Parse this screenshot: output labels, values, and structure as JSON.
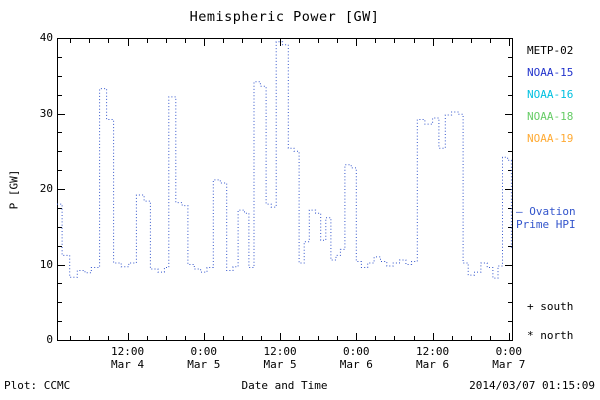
{
  "chart_data": {
    "type": "line",
    "title": "Hemispheric Power [GW]",
    "ylabel": "P [GW]",
    "xlabel": "Date and Time",
    "ylim": [
      0,
      40
    ],
    "xlim": [
      0.9,
      72.5
    ],
    "x_unit": "hours from 2014-03-04 00:00",
    "grid": false,
    "y_ticks": [
      0,
      10,
      20,
      30,
      40
    ],
    "y_minor_step": 2.5,
    "x_minor_step": 3,
    "x_ticks": [
      {
        "pos": 12,
        "line1": "12:00",
        "line2": "Mar 4"
      },
      {
        "pos": 24,
        "line1": "0:00",
        "line2": "Mar 5"
      },
      {
        "pos": 36,
        "line1": "12:00",
        "line2": "Mar 5"
      },
      {
        "pos": 48,
        "line1": "0:00",
        "line2": "Mar 6"
      },
      {
        "pos": 60,
        "line1": "12:00",
        "line2": "Mar 6"
      },
      {
        "pos": 72,
        "line1": "0:00",
        "line2": "Mar 7"
      }
    ],
    "series": [
      {
        "name": "Ovation Prime HPI",
        "color": "#3355cc",
        "style": "dotted-step",
        "points": [
          [
            0.9,
            18.0
          ],
          [
            1.7,
            11.2
          ],
          [
            2.9,
            8.3
          ],
          [
            4.1,
            9.2
          ],
          [
            5.3,
            8.9
          ],
          [
            6.3,
            9.6
          ],
          [
            7.6,
            33.3
          ],
          [
            8.7,
            29.2
          ],
          [
            9.8,
            10.2
          ],
          [
            11.0,
            9.7
          ],
          [
            12.2,
            10.2
          ],
          [
            13.4,
            19.2
          ],
          [
            14.6,
            18.4
          ],
          [
            15.6,
            9.4
          ],
          [
            16.8,
            9.0
          ],
          [
            17.8,
            9.6
          ],
          [
            18.5,
            32.2
          ],
          [
            19.6,
            18.2
          ],
          [
            20.6,
            17.8
          ],
          [
            21.5,
            10.0
          ],
          [
            22.5,
            9.4
          ],
          [
            23.5,
            9.0
          ],
          [
            24.5,
            9.6
          ],
          [
            25.5,
            21.2
          ],
          [
            26.6,
            20.8
          ],
          [
            27.6,
            9.2
          ],
          [
            28.6,
            9.7
          ],
          [
            29.4,
            17.2
          ],
          [
            30.4,
            16.8
          ],
          [
            31.1,
            9.6
          ],
          [
            31.9,
            34.2
          ],
          [
            32.9,
            33.6
          ],
          [
            33.8,
            18.0
          ],
          [
            34.6,
            17.6
          ],
          [
            35.4,
            39.5
          ],
          [
            36.4,
            39.1
          ],
          [
            37.3,
            25.4
          ],
          [
            38.2,
            25.0
          ],
          [
            39.0,
            10.2
          ],
          [
            39.8,
            13.0
          ],
          [
            40.6,
            17.2
          ],
          [
            41.6,
            16.8
          ],
          [
            42.4,
            13.2
          ],
          [
            43.2,
            16.2
          ],
          [
            44.0,
            10.6
          ],
          [
            44.8,
            11.2
          ],
          [
            45.5,
            12.0
          ],
          [
            46.2,
            23.2
          ],
          [
            47.2,
            22.8
          ],
          [
            48.0,
            10.4
          ],
          [
            48.8,
            9.6
          ],
          [
            49.8,
            10.2
          ],
          [
            50.8,
            11.0
          ],
          [
            51.8,
            10.4
          ],
          [
            52.8,
            9.8
          ],
          [
            53.8,
            10.2
          ],
          [
            54.8,
            10.6
          ],
          [
            55.8,
            10.0
          ],
          [
            56.7,
            10.4
          ],
          [
            57.6,
            29.2
          ],
          [
            58.8,
            28.6
          ],
          [
            60.0,
            29.4
          ],
          [
            61.0,
            25.4
          ],
          [
            62.0,
            29.8
          ],
          [
            63.0,
            30.2
          ],
          [
            64.0,
            29.9
          ],
          [
            64.8,
            10.2
          ],
          [
            65.6,
            8.6
          ],
          [
            66.6,
            9.0
          ],
          [
            67.6,
            10.2
          ],
          [
            68.6,
            9.6
          ],
          [
            69.5,
            8.2
          ],
          [
            70.3,
            9.8
          ],
          [
            71.0,
            24.2
          ],
          [
            71.8,
            23.8
          ],
          [
            72.4,
            12.0
          ]
        ]
      }
    ]
  },
  "legend": {
    "satellites": [
      {
        "label": "METP-02",
        "color": "#000000"
      },
      {
        "label": "NOAA-15",
        "color": "#2233cc"
      },
      {
        "label": "NOAA-16",
        "color": "#00c0e0"
      },
      {
        "label": "NOAA-18",
        "color": "#66cc66"
      },
      {
        "label": "NOAA-19",
        "color": "#ffaa33"
      }
    ],
    "model_line1": "– Ovation",
    "model_line2": "Prime HPI",
    "model_color": "#3355cc",
    "south_marker": "+ south",
    "north_marker": "* north"
  },
  "footer": {
    "left": "Plot: CCMC",
    "right": "2014/03/07 01:15:09"
  }
}
